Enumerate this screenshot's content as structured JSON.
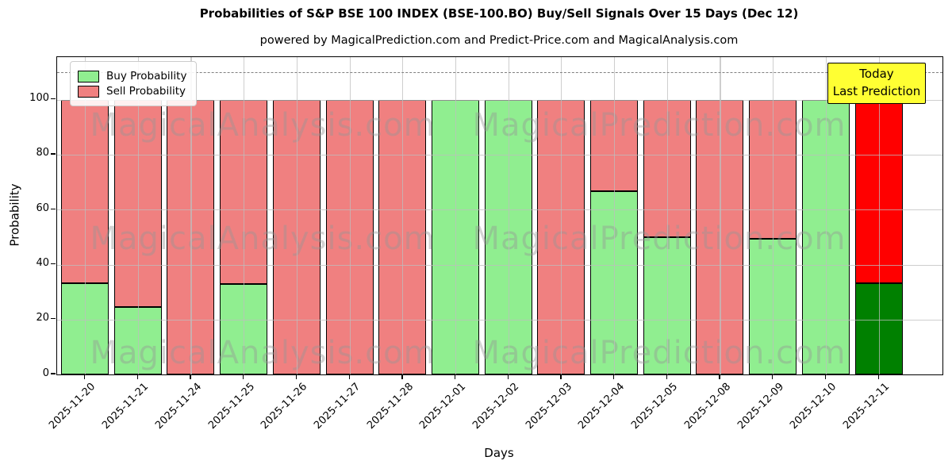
{
  "title": "Probabilities of S&P BSE 100 INDEX (BSE-100.BO) Buy/Sell Signals Over 15 Days (Dec 12)",
  "subtitle": "powered by MagicalPrediction.com and Predict-Price.com and MagicalAnalysis.com",
  "legend": {
    "buy_label": "Buy Probability",
    "sell_label": "Sell Probability"
  },
  "annotation": {
    "line1": "Today",
    "line2": "Last Prediction"
  },
  "watermarks": {
    "left": "MagicalAnalysis.com",
    "right": "MagicalPrediction.com"
  },
  "colors": {
    "buy": "#90EE90",
    "sell": "#F08080",
    "today_buy": "#008000",
    "today_sell": "#FF0000",
    "bar_edge": "#000000",
    "grid": "#BDBDBD",
    "dashed_line": "#808080",
    "annotation_bg": "#FFFF33",
    "annotation_border": "#000000"
  },
  "chart_data": {
    "type": "bar",
    "stacked": true,
    "title": "Probabilities of S&P BSE 100 INDEX (BSE-100.BO) Buy/Sell Signals Over 15 Days (Dec 12)",
    "xlabel": "Days",
    "ylabel": "Probability",
    "ylim": [
      0,
      115.5
    ],
    "yticks": [
      0,
      20,
      40,
      60,
      80,
      100
    ],
    "gridline_values": [
      20,
      40,
      60,
      80,
      100
    ],
    "dashed_line_y": 110,
    "grid": true,
    "legend_position": "upper left",
    "categories": [
      "2025-11-20",
      "2025-11-21",
      "2025-11-24",
      "2025-11-25",
      "2025-11-26",
      "2025-11-27",
      "2025-11-28",
      "2025-12-01",
      "2025-12-02",
      "2025-12-03",
      "2025-12-04",
      "2025-12-05",
      "2025-12-08",
      "2025-12-09",
      "2025-12-10",
      "2025-12-11"
    ],
    "series": [
      {
        "name": "Buy Probability",
        "values": [
          33.3,
          24.7,
          0,
          32.9,
          0,
          0,
          0,
          100,
          100,
          0,
          66.7,
          50,
          0,
          49.4,
          100,
          33.3
        ]
      },
      {
        "name": "Sell Probability",
        "values": [
          66.7,
          75.3,
          100,
          67.1,
          100,
          100,
          100,
          0,
          0,
          100,
          33.3,
          50,
          100,
          50.6,
          0,
          66.7
        ]
      }
    ],
    "today_index": 15
  }
}
